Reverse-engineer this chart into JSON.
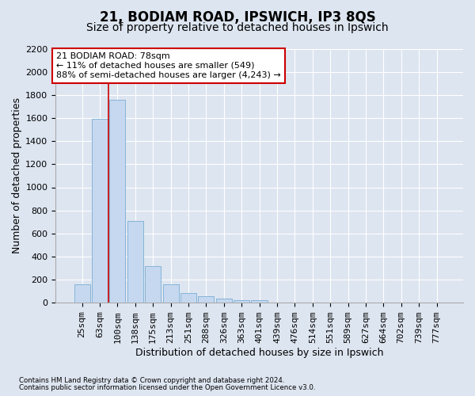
{
  "title": "21, BODIAM ROAD, IPSWICH, IP3 8QS",
  "subtitle": "Size of property relative to detached houses in Ipswich",
  "xlabel": "Distribution of detached houses by size in Ipswich",
  "ylabel": "Number of detached properties",
  "footnote1": "Contains HM Land Registry data © Crown copyright and database right 2024.",
  "footnote2": "Contains public sector information licensed under the Open Government Licence v3.0.",
  "categories": [
    "25sqm",
    "63sqm",
    "100sqm",
    "138sqm",
    "175sqm",
    "213sqm",
    "251sqm",
    "288sqm",
    "326sqm",
    "363sqm",
    "401sqm",
    "439sqm",
    "476sqm",
    "514sqm",
    "551sqm",
    "589sqm",
    "627sqm",
    "664sqm",
    "702sqm",
    "739sqm",
    "777sqm"
  ],
  "values": [
    160,
    1590,
    1760,
    710,
    315,
    160,
    88,
    55,
    35,
    25,
    20,
    0,
    0,
    0,
    0,
    0,
    0,
    0,
    0,
    0,
    0
  ],
  "bar_color": "#c5d8ef",
  "bar_edge_color": "#7aadd4",
  "vline_x_index": 1.5,
  "vline_color": "#cc0000",
  "annotation_line1": "21 BODIAM ROAD: 78sqm",
  "annotation_line2": "← 11% of detached houses are smaller (549)",
  "annotation_line3": "88% of semi-detached houses are larger (4,243) →",
  "annotation_box_color": "#ffffff",
  "annotation_box_edge": "#cc0000",
  "bg_color": "#dde5f0",
  "plot_bg_color": "#dde5f0",
  "ylim": [
    0,
    2200
  ],
  "yticks": [
    0,
    200,
    400,
    600,
    800,
    1000,
    1200,
    1400,
    1600,
    1800,
    2000,
    2200
  ],
  "grid_color": "#ffffff",
  "title_fontsize": 12,
  "subtitle_fontsize": 10,
  "tick_fontsize": 8,
  "xlabel_fontsize": 9,
  "ylabel_fontsize": 9,
  "annotation_fontsize": 8
}
